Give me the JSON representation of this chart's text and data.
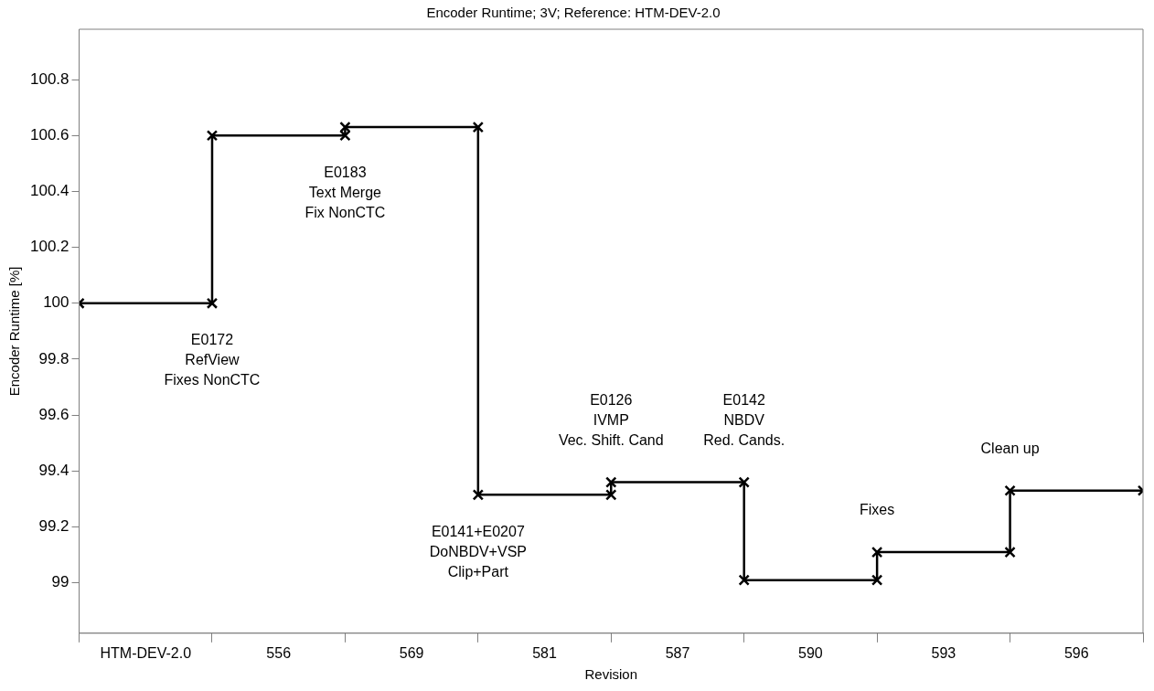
{
  "chart_data": {
    "type": "step",
    "title": "Encoder Runtime; 3V; Reference: HTM-DEV-2.0",
    "xlabel": "Revision",
    "ylabel": "Encoder Runtime [%]",
    "categories": [
      null,
      "HTM-DEV-2.0",
      null,
      "556",
      null,
      "569",
      null,
      "581",
      null,
      "587",
      null,
      "590",
      null,
      "593",
      null,
      "596",
      null
    ],
    "series": [
      {
        "marker": "none",
        "color": "#000000",
        "values": [
          100,
          100,
          100.6,
          100.6,
          100.63,
          100.63,
          99.315,
          99.315,
          99.36,
          99.36,
          99.01,
          99.01,
          99.11,
          99.11,
          99.33,
          99.33,
          99.33
        ]
      },
      {
        "type": "scatter",
        "color": "#000000",
        "values": [
          null,
          null,
          100,
          null,
          100.6,
          null,
          100.63,
          null,
          99.315,
          null,
          99.36,
          null,
          99.01,
          null,
          99.11,
          null,
          99.33
        ]
      },
      {
        "type": "scatter",
        "color": "#000000",
        "values": [
          100,
          null,
          100.6,
          null,
          100.63,
          null,
          99.315,
          null,
          99.36,
          null,
          99.01,
          null,
          99.11,
          null,
          99.33,
          null,
          null
        ]
      }
    ],
    "ylim": [
      98.82,
      100.98
    ],
    "yticks": [
      99,
      99.2,
      99.4,
      99.6,
      99.8,
      {
        "value": 100,
        "label": "100"
      },
      100.2,
      100.4,
      100.6,
      100.8
    ],
    "annotations": [
      "E0172\nRefView\nFixes NonCTC",
      "E0183\nText Merge\nFix NonCTC",
      "E0141+E0207\nDoNBDV+VSP\nClip+Part",
      "E0126\nIVMP\nVec. Shift. Cand",
      "E0142\nNBDV\nRed. Cands.",
      "Fixes",
      "Clean up"
    ],
    "grid": false,
    "legend": false,
    "marker": "cross",
    "line_style": "solid"
  }
}
